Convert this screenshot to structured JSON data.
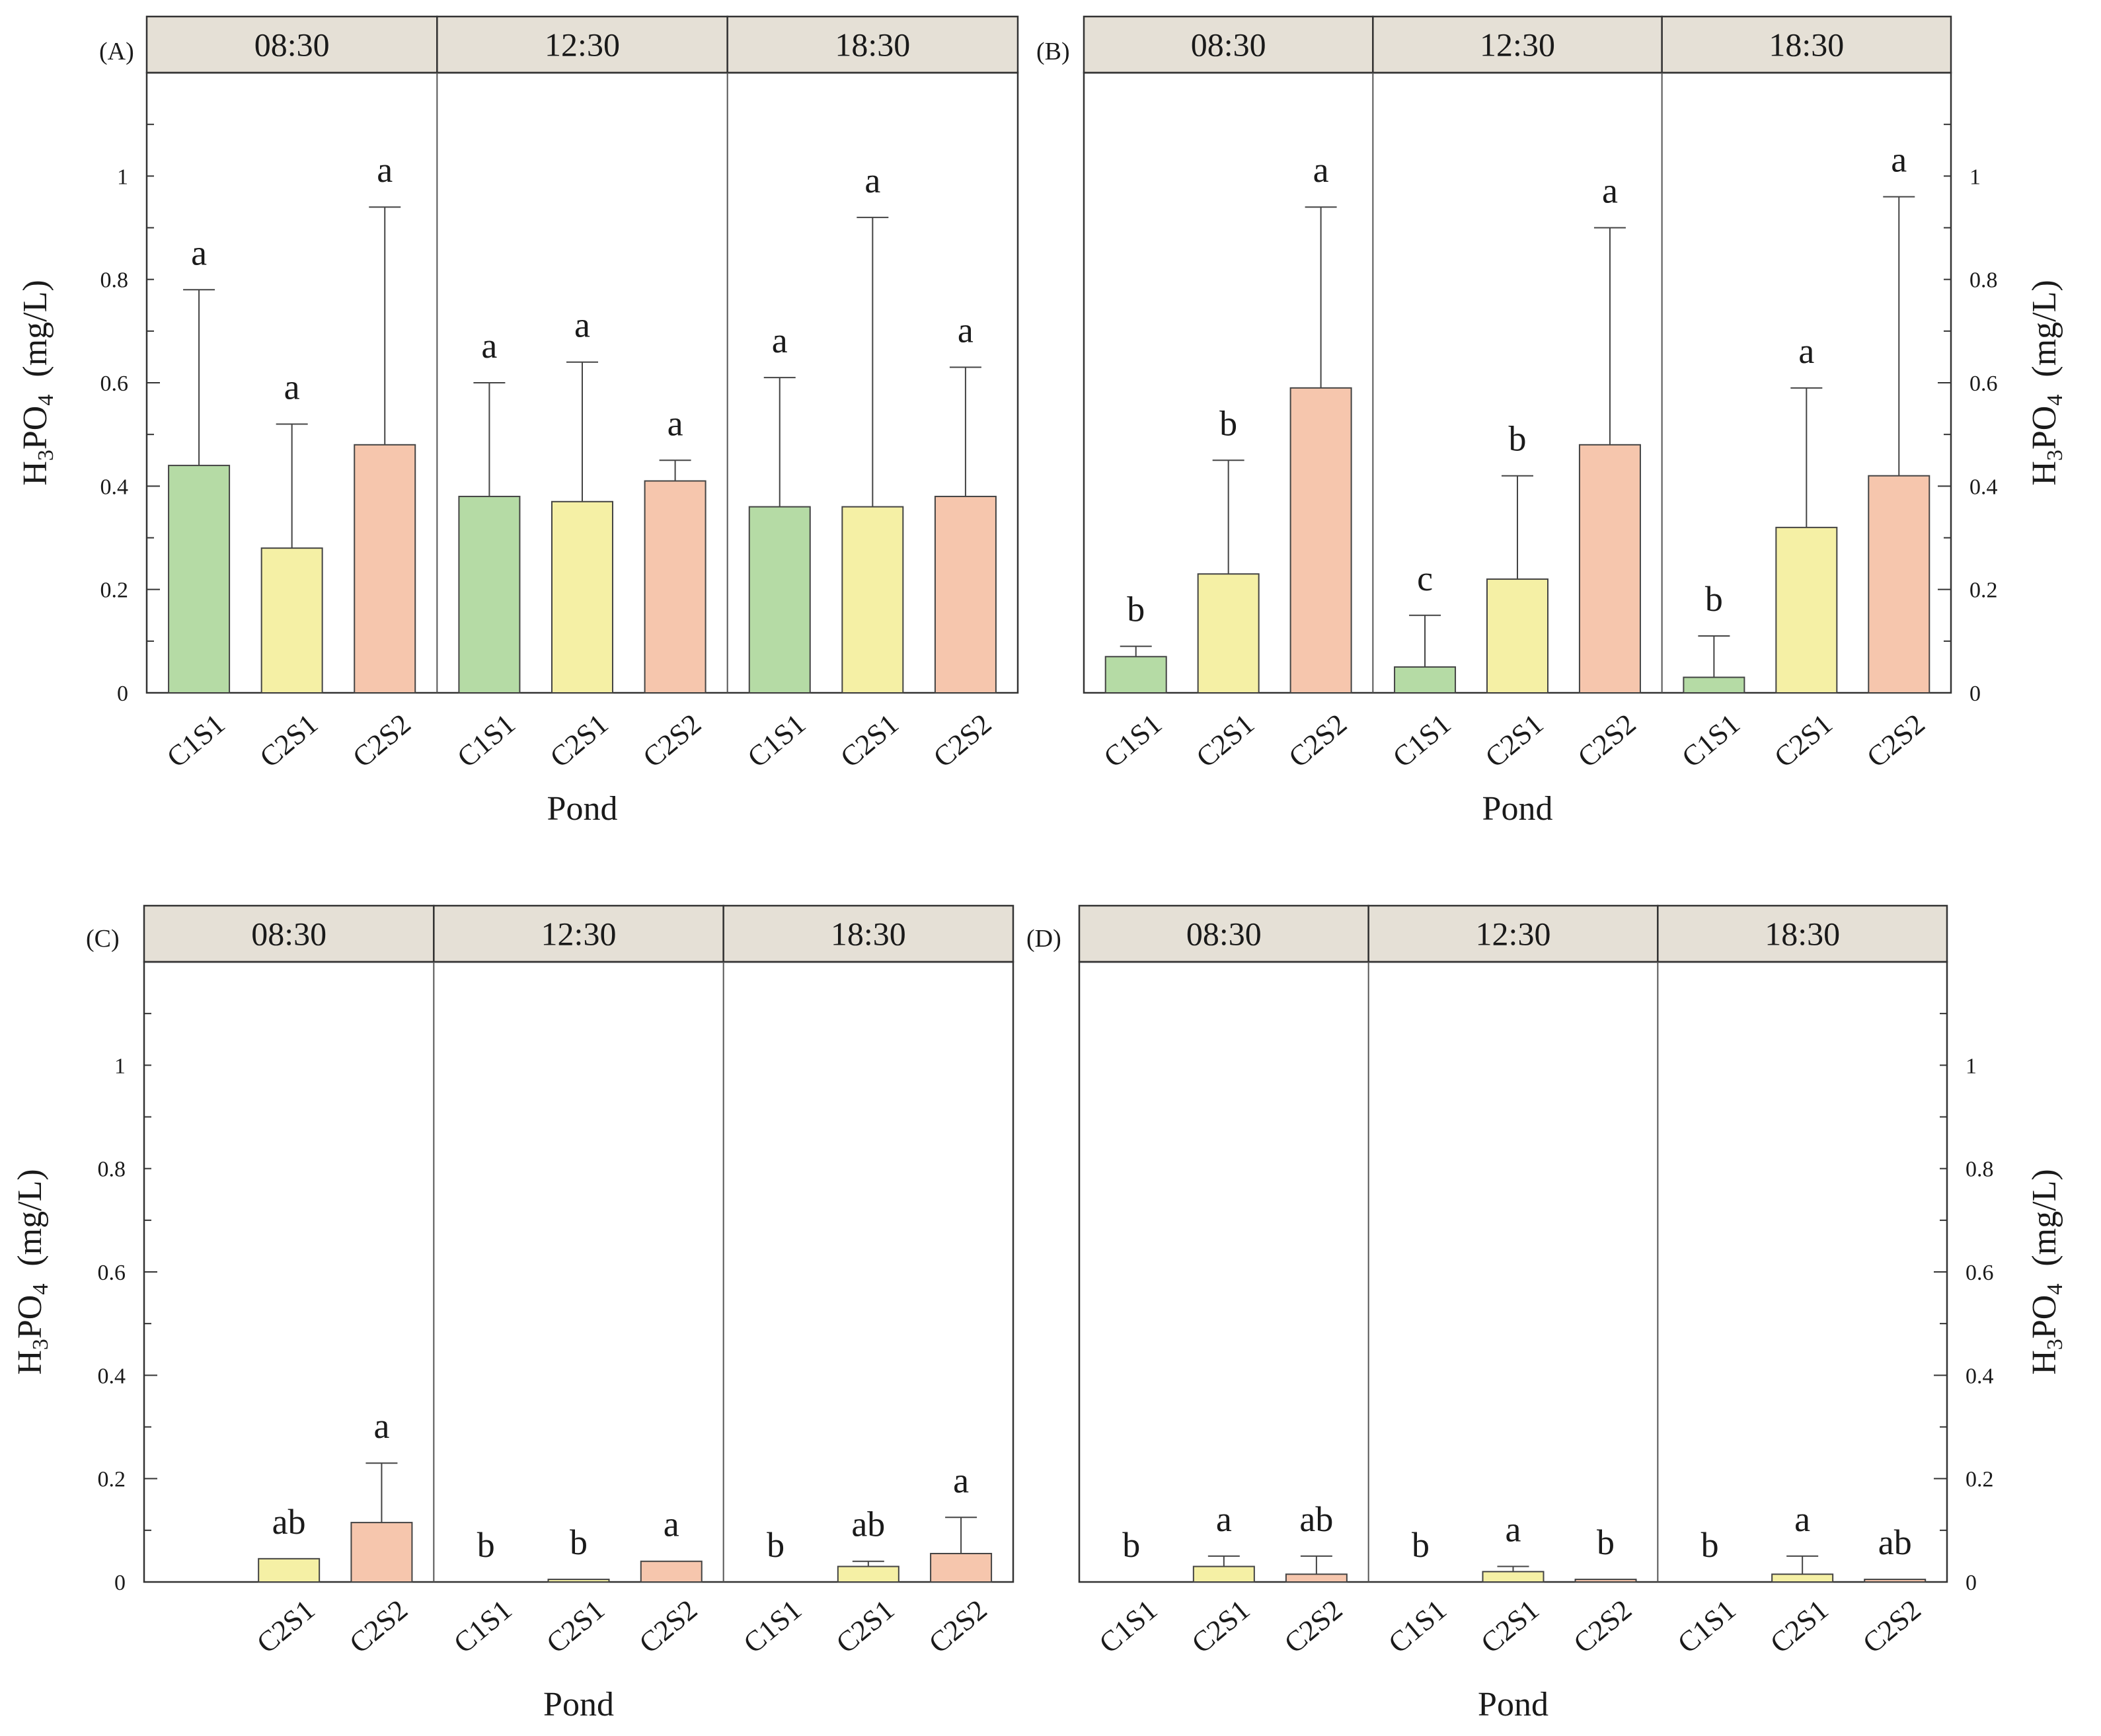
{
  "colors": {
    "C1S1": "#b5dba5",
    "C2S1": "#f5f0a5",
    "C2S2": "#f6c6ad",
    "strip": "#e5e0d6"
  },
  "xlabel": "Pond",
  "ylabel": {
    "main": "H",
    "sub3": "3",
    "mid": "PO",
    "sub4": "4",
    "unit": "(mg/L)"
  },
  "chart_data": [
    {
      "type": "bar",
      "panel": "(A)",
      "ylabel": "H3PO4 (mg/L)",
      "xlabel": "Pond",
      "ylim": [
        0,
        1.2
      ],
      "yticks": [
        "0",
        "0.2",
        "0.4",
        "0.6",
        "0.8",
        "1"
      ],
      "facets": [
        {
          "label": "08:30",
          "groups": [
            {
              "name": "C1S1",
              "value": 0.44,
              "err": 0.78,
              "sig": "a"
            },
            {
              "name": "C2S1",
              "value": 0.28,
              "err": 0.52,
              "sig": "a"
            },
            {
              "name": "C2S2",
              "value": 0.48,
              "err": 0.94,
              "sig": "a"
            }
          ]
        },
        {
          "label": "12:30",
          "groups": [
            {
              "name": "C1S1",
              "value": 0.38,
              "err": 0.6,
              "sig": "a"
            },
            {
              "name": "C2S1",
              "value": 0.37,
              "err": 0.64,
              "sig": "a"
            },
            {
              "name": "C2S2",
              "value": 0.41,
              "err": 0.45,
              "sig": "a"
            }
          ]
        },
        {
          "label": "18:30",
          "groups": [
            {
              "name": "C1S1",
              "value": 0.36,
              "err": 0.61,
              "sig": "a"
            },
            {
              "name": "C2S1",
              "value": 0.36,
              "err": 0.92,
              "sig": "a"
            },
            {
              "name": "C2S2",
              "value": 0.38,
              "err": 0.63,
              "sig": "a"
            }
          ]
        }
      ]
    },
    {
      "type": "bar",
      "panel": "(B)",
      "ylabel": "H3PO4 (mg/L)",
      "xlabel": "Pond",
      "ylim": [
        0,
        1.2
      ],
      "yticks": [
        "0",
        "0.2",
        "0.4",
        "0.6",
        "0.8",
        "1"
      ],
      "facets": [
        {
          "label": "08:30",
          "groups": [
            {
              "name": "C1S1",
              "value": 0.07,
              "err": 0.09,
              "sig": "b"
            },
            {
              "name": "C2S1",
              "value": 0.23,
              "err": 0.45,
              "sig": "b"
            },
            {
              "name": "C2S2",
              "value": 0.59,
              "err": 0.94,
              "sig": "a"
            }
          ]
        },
        {
          "label": "12:30",
          "groups": [
            {
              "name": "C1S1",
              "value": 0.05,
              "err": 0.15,
              "sig": "c"
            },
            {
              "name": "C2S1",
              "value": 0.22,
              "err": 0.42,
              "sig": "b"
            },
            {
              "name": "C2S2",
              "value": 0.48,
              "err": 0.9,
              "sig": "a"
            }
          ]
        },
        {
          "label": "18:30",
          "groups": [
            {
              "name": "C1S1",
              "value": 0.03,
              "err": 0.11,
              "sig": "b"
            },
            {
              "name": "C2S1",
              "value": 0.32,
              "err": 0.59,
              "sig": "a"
            },
            {
              "name": "C2S2",
              "value": 0.42,
              "err": 0.96,
              "sig": "a"
            }
          ]
        }
      ]
    },
    {
      "type": "bar",
      "panel": "(C)",
      "ylabel": "H3PO4 (mg/L)",
      "xlabel": "Pond",
      "ylim": [
        0,
        1.2
      ],
      "yticks": [
        "0",
        "0.2",
        "0.4",
        "0.6",
        "0.8",
        "1"
      ],
      "facets": [
        {
          "label": "08:30",
          "groups": [
            {
              "name": "C2S1",
              "value": 0.045,
              "err": 0.045,
              "sig": "ab"
            },
            {
              "name": "C2S2",
              "value": 0.115,
              "err": 0.23,
              "sig": "a"
            }
          ]
        },
        {
          "label": "12:30",
          "groups": [
            {
              "name": "C1S1",
              "value": 0.0,
              "err": 0.0,
              "sig": "b"
            },
            {
              "name": "C2S1",
              "value": 0.005,
              "err": 0.005,
              "sig": "b"
            },
            {
              "name": "C2S2",
              "value": 0.04,
              "err": 0.04,
              "sig": "a"
            }
          ]
        },
        {
          "label": "18:30",
          "groups": [
            {
              "name": "C1S1",
              "value": 0.0,
              "err": 0.0,
              "sig": "b"
            },
            {
              "name": "C2S1",
              "value": 0.03,
              "err": 0.04,
              "sig": "ab"
            },
            {
              "name": "C2S2",
              "value": 0.055,
              "err": 0.125,
              "sig": "a"
            }
          ]
        }
      ]
    },
    {
      "type": "bar",
      "panel": "(D)",
      "ylabel": "H3PO4 (mg/L)",
      "xlabel": "Pond",
      "ylim": [
        0,
        1.2
      ],
      "yticks": [
        "0",
        "0.2",
        "0.4",
        "0.6",
        "0.8",
        "1"
      ],
      "facets": [
        {
          "label": "08:30",
          "groups": [
            {
              "name": "C1S1",
              "value": 0.0,
              "err": 0.0,
              "sig": "b"
            },
            {
              "name": "C2S1",
              "value": 0.03,
              "err": 0.05,
              "sig": "a"
            },
            {
              "name": "C2S2",
              "value": 0.015,
              "err": 0.05,
              "sig": "ab"
            }
          ]
        },
        {
          "label": "12:30",
          "groups": [
            {
              "name": "C1S1",
              "value": 0.0,
              "err": 0.0,
              "sig": "b"
            },
            {
              "name": "C2S1",
              "value": 0.02,
              "err": 0.03,
              "sig": "a"
            },
            {
              "name": "C2S2",
              "value": 0.005,
              "err": 0.005,
              "sig": "b"
            }
          ]
        },
        {
          "label": "18:30",
          "groups": [
            {
              "name": "C1S1",
              "value": 0.0,
              "err": 0.0,
              "sig": "b"
            },
            {
              "name": "C2S1",
              "value": 0.015,
              "err": 0.05,
              "sig": "a"
            },
            {
              "name": "C2S2",
              "value": 0.005,
              "err": 0.005,
              "sig": "ab"
            }
          ]
        }
      ]
    }
  ]
}
